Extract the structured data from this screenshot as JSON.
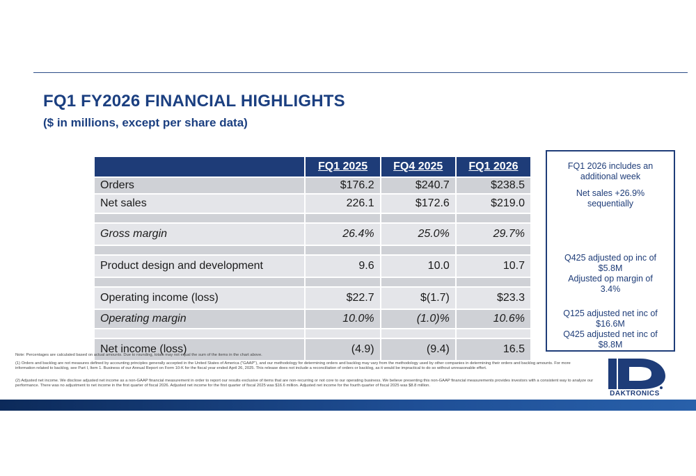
{
  "header": {
    "title": "FQ1 FY2026 FINANCIAL HIGHLIGHTS",
    "subtitle": "($ in millions, except per share data)"
  },
  "table": {
    "columns": [
      "",
      "FQ1 2025",
      "FQ4 2025",
      "FQ1 2026"
    ],
    "rows": [
      {
        "label": "Orders",
        "values": [
          "$176.2",
          "$240.7",
          "$238.5"
        ]
      },
      {
        "label": "Net sales",
        "values": [
          "226.1",
          "$172.6",
          "$219.0"
        ]
      },
      {
        "label": "",
        "values": [
          "",
          "",
          ""
        ]
      },
      {
        "label": "Gross margin",
        "values": [
          "26.4%",
          "25.0%",
          "29.7%"
        ]
      },
      {
        "label": "",
        "values": [
          "",
          "",
          ""
        ]
      },
      {
        "label": "Product design and development",
        "values": [
          "9.6",
          "10.0",
          "10.7"
        ]
      },
      {
        "label": "",
        "values": [
          "",
          "",
          ""
        ]
      },
      {
        "label": "Operating income (loss)",
        "values": [
          "$22.7",
          "$(1.7)",
          "$23.3"
        ]
      },
      {
        "label": "Operating margin",
        "values": [
          "10.0%",
          "(1.0)%",
          "10.6%"
        ]
      },
      {
        "label": "",
        "values": [
          "",
          "",
          ""
        ]
      },
      {
        "label": "Net income (loss)",
        "values": [
          "(4.9)",
          "(9.4)",
          "16.5"
        ]
      }
    ]
  },
  "callout": {
    "block1": [
      "FQ1 2026 includes an",
      "additional week"
    ],
    "block2": [
      "Net sales +26.9%",
      "sequentially"
    ],
    "block3": [
      "Q425 adjusted op inc of",
      "$5.8M",
      "Adjusted op margin of",
      "3.4%"
    ],
    "block4": [
      "Q125 adjusted net inc of",
      "$16.6M",
      "Q425 adjusted net inc of",
      "$8.8M"
    ]
  },
  "notes": {
    "pct": "Note: Percentages are calculated based on actual amounts. Due to rounding, totals may not equal the sum of the items in the chart above.",
    "n1": "(1) Orders and backlog are not measures defined by accounting principles generally accepted in the United States of America (\"GAAP\"), and our methodology for determining orders and backlog may vary from the methodology used by other companies in determining their orders and backlog amounts. For more information related to backlog, see Part I, Item 1. Business of our Annual Report on Form 10-K for the fiscal year ended April 26, 2025. This release does not include a reconciliation of orders or backlog, as it would be impractical to do so without unreasonable effort.",
    "n2": "(2) Adjusted net income. We disclose adjusted net income as a non-GAAP financial measurement in order to report our results exclusive of items that are non-recurring or not core to our operating business. We believe presenting this non-GAAP financial measurements provides investors with a consistent way to analyze our performance. There was no adjustment to net income in the first quarter of fiscal 2026. Adjusted net income for the first quarter of fiscal 2025 was $16.6 million. Adjusted net income for the fourth quarter of fiscal 2025 was $8.8 million."
  },
  "logo": {
    "text": "DAKTRONICS",
    "color": "#1e3c78"
  },
  "colors": {
    "brand": "#1e3c78",
    "title": "#1b3f80",
    "row_dark": "#cfd1d6",
    "row_light": "#e4e5e9"
  }
}
